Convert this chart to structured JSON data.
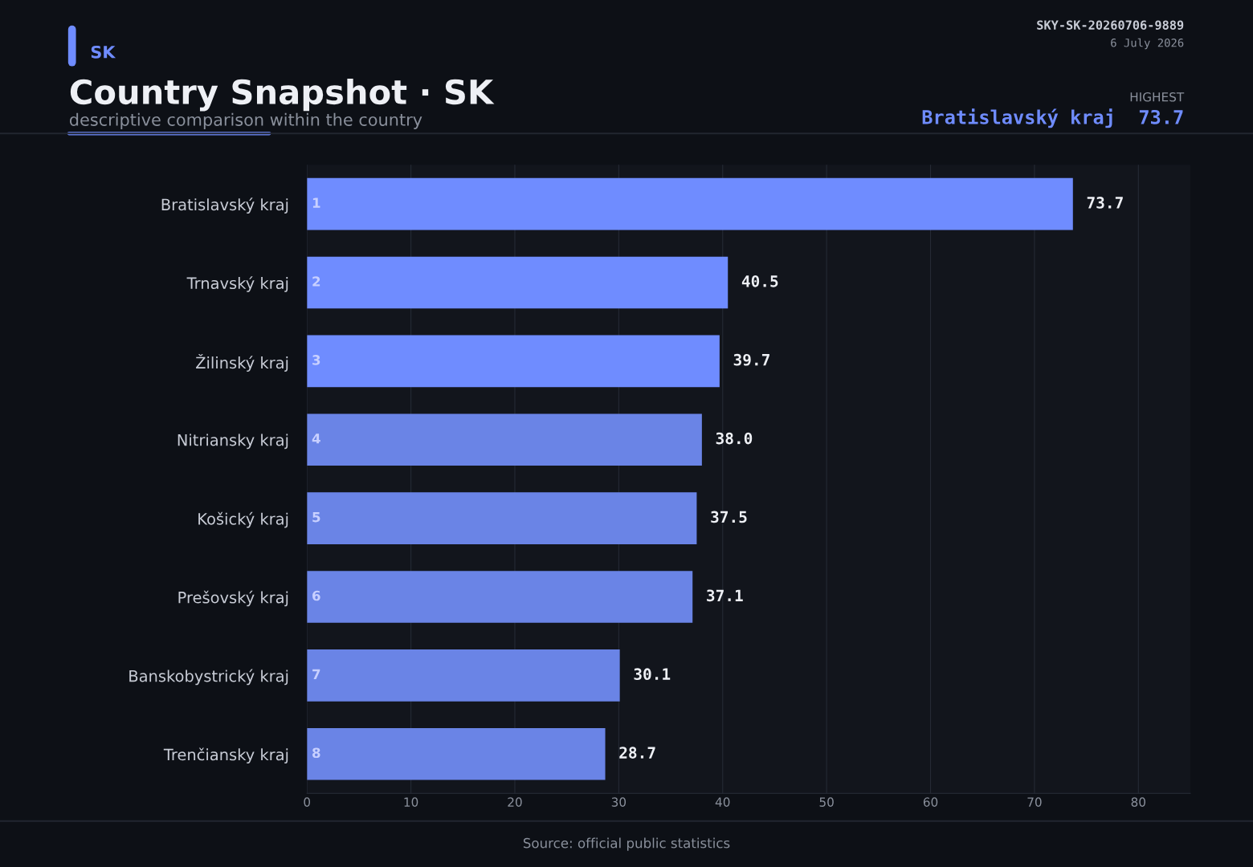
{
  "chart_data": {
    "type": "bar",
    "orientation": "horizontal",
    "title": "Country Snapshot · SK",
    "subtitle": "descriptive comparison within the country",
    "categories": [
      "Bratislavský kraj",
      "Trnavský kraj",
      "Žilinský kraj",
      "Nitriansky kraj",
      "Košický kraj",
      "Prešovský kraj",
      "Banskobystrický kraj",
      "Trenčiansky kraj"
    ],
    "values": [
      73.7,
      40.5,
      39.7,
      38.0,
      37.5,
      37.1,
      30.1,
      28.7
    ],
    "colors": [
      "#6f8cff",
      "#6f8cff",
      "#6f8cff",
      "#6a84e6",
      "#6a84e6",
      "#6a84e6",
      "#6a84e6",
      "#6a84e6"
    ],
    "value_labels": [
      "73.7",
      "40.5",
      "39.7",
      "38.0",
      "37.5",
      "37.1",
      "30.1",
      "28.7"
    ],
    "xlim": [
      0,
      85
    ],
    "xticks": [
      0,
      10,
      20,
      30,
      40,
      50,
      60,
      70,
      80
    ],
    "grid": "x",
    "legend": false,
    "annotations": [
      "SK",
      "SKY-SK-20260706-9889",
      "6 July 2026",
      "HIGHEST",
      "Bratislavský kraj  73.7",
      "Source: official public statistics",
      "1",
      "2",
      "3",
      "4",
      "5",
      "6",
      "7",
      "8"
    ]
  }
}
